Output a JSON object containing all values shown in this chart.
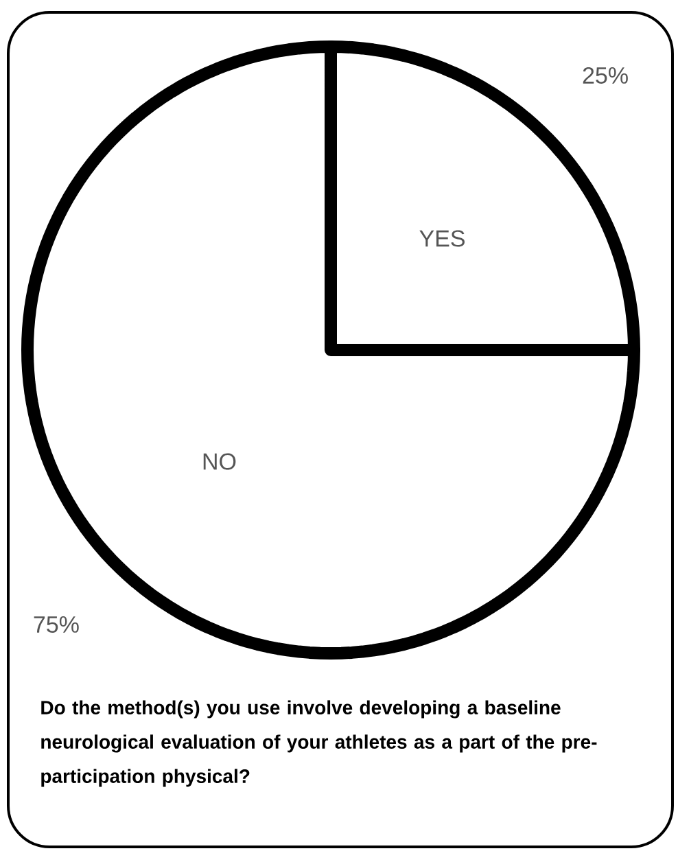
{
  "chart_data": {
    "type": "pie",
    "categories": [
      "YES",
      "NO"
    ],
    "values": [
      25,
      75
    ],
    "colors": [
      "#ffffff",
      "#ffffff"
    ],
    "value_labels": [
      "25%",
      "75%"
    ],
    "annotations": [
      "Do the method(s) you use involve developing a baseline neurological evaluation of your athletes as a part of the pre-participation physical?"
    ]
  }
}
